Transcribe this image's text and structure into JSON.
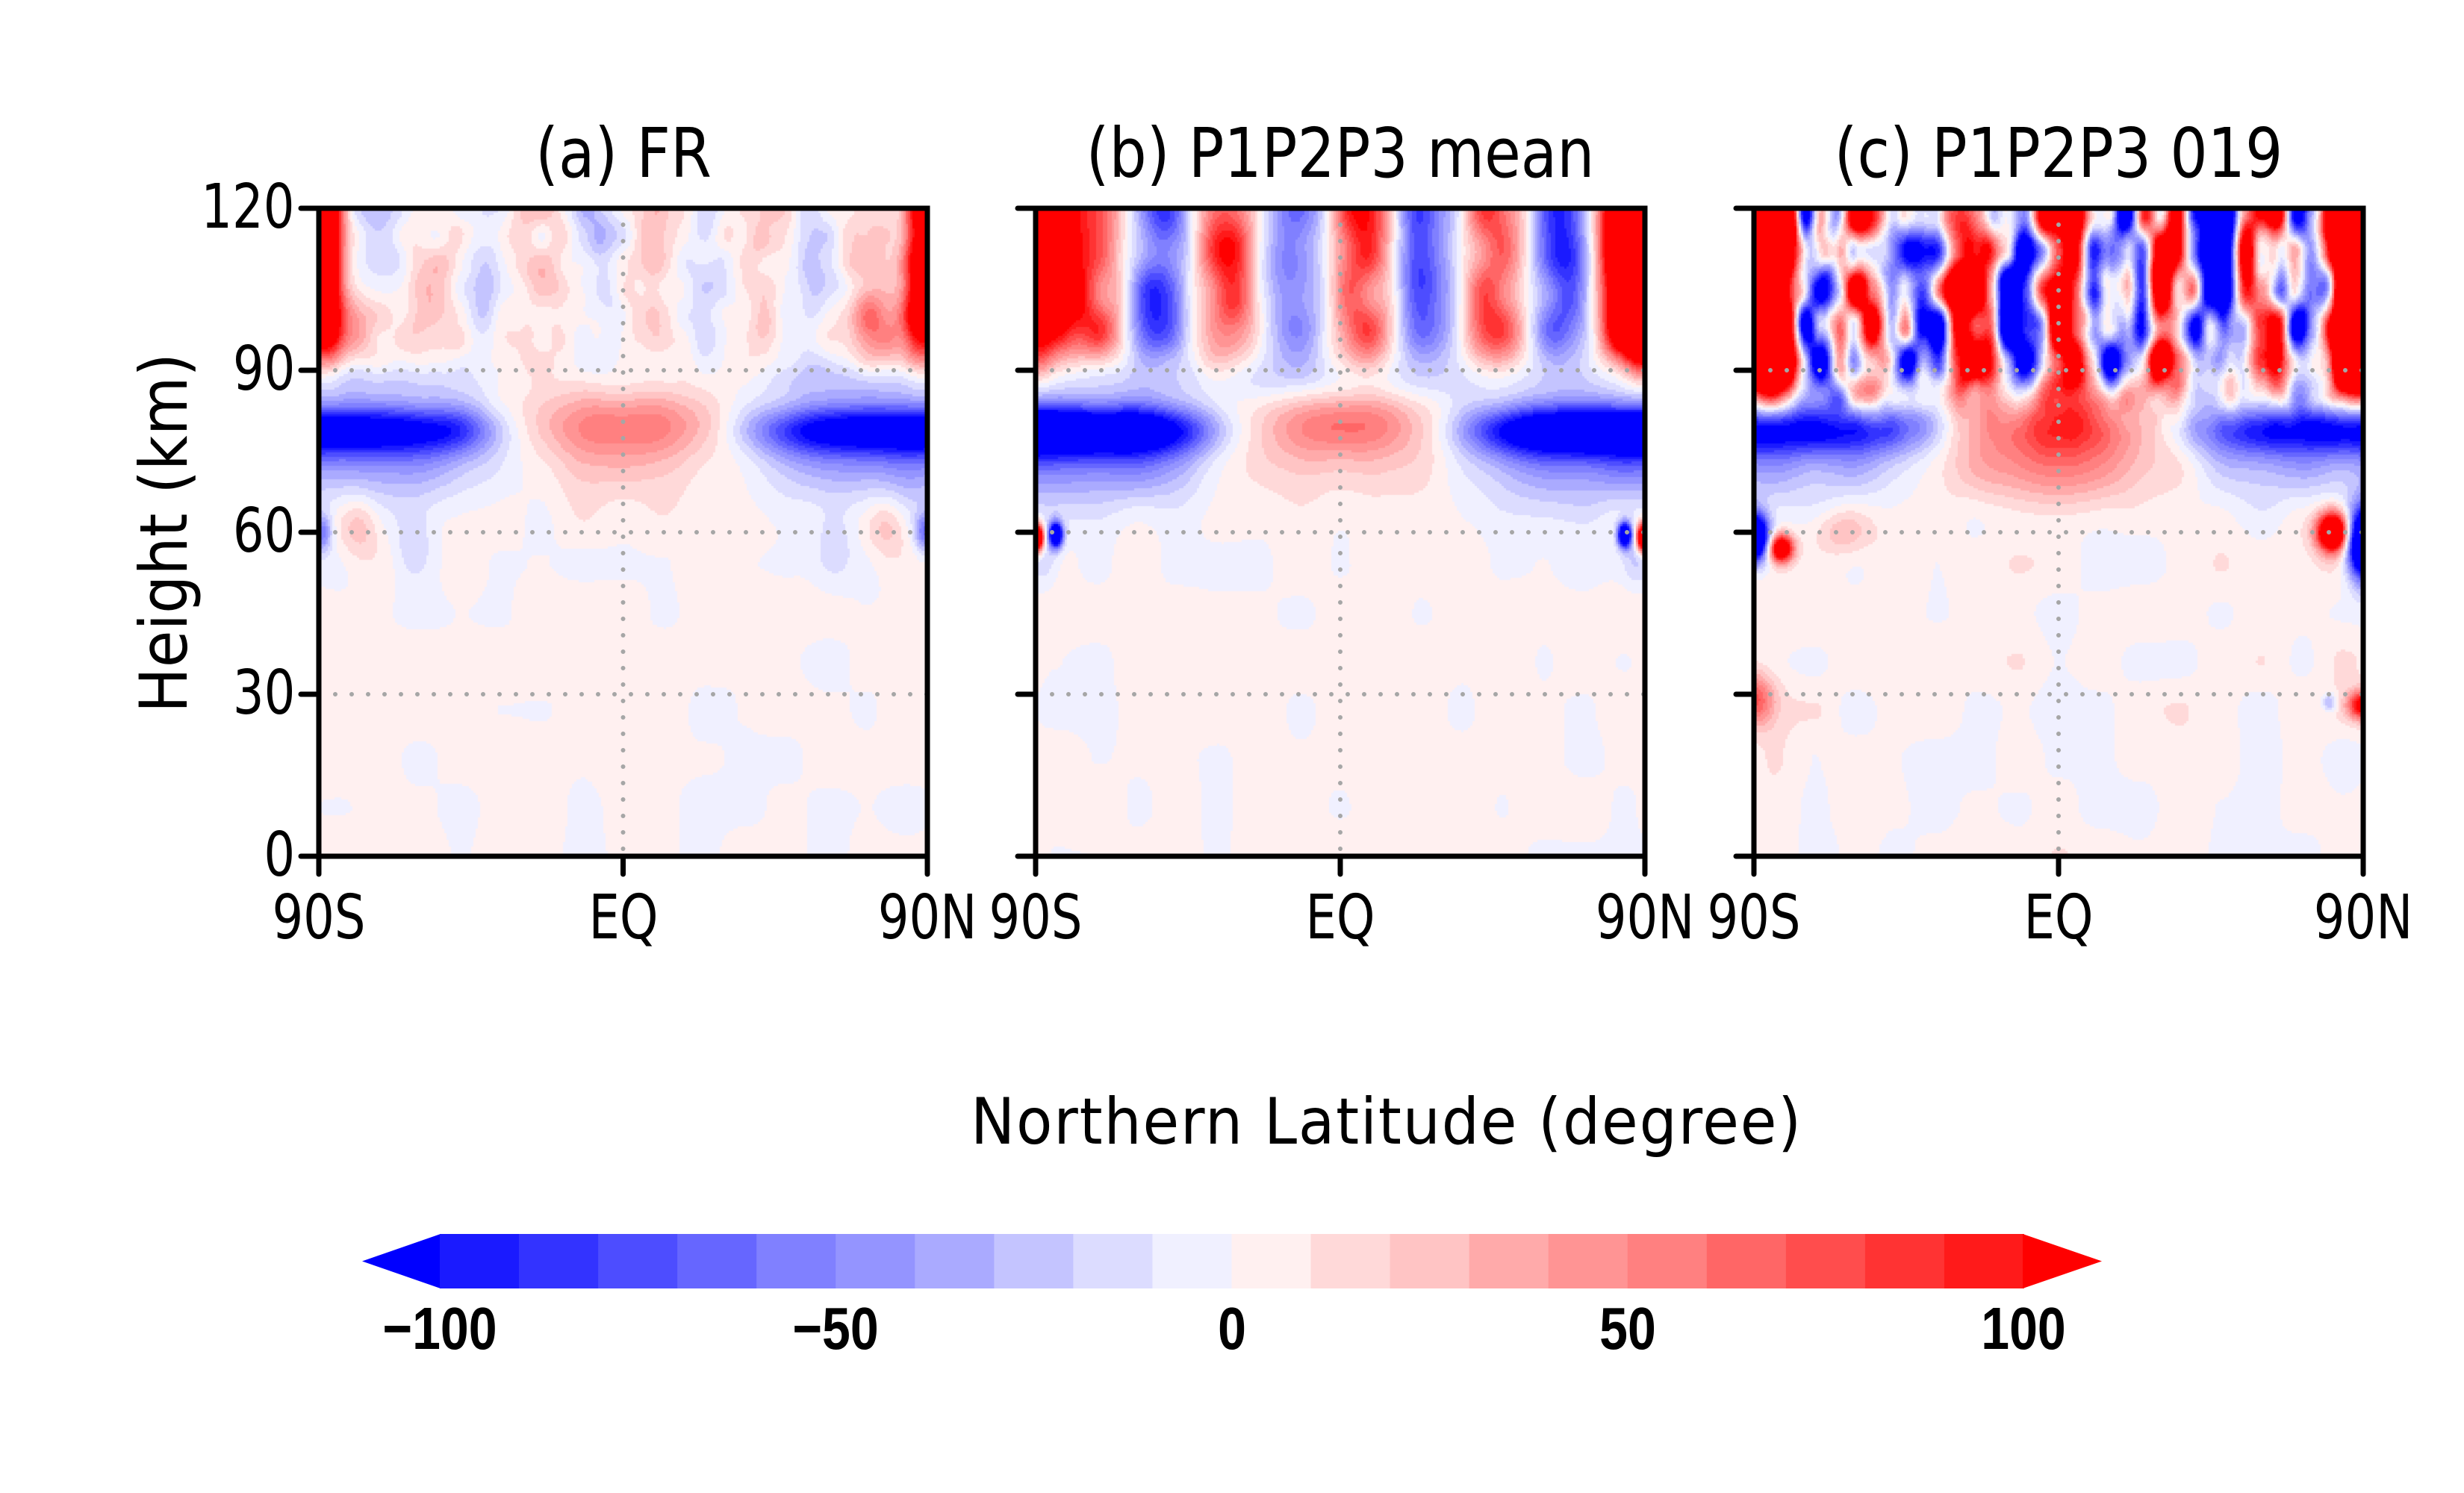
{
  "chart_data": {
    "type": "heatmap",
    "subtype": "filled-contour latitude-height cross sections",
    "xlabel": "Northern Latitude (degree)",
    "ylabel": "Height (km)",
    "xlim": [
      -90,
      90
    ],
    "ylim": [
      0,
      120
    ],
    "x_ticks": [
      {
        "value": -90,
        "label": "90S"
      },
      {
        "value": 0,
        "label": "EQ"
      },
      {
        "value": 90,
        "label": "90N"
      }
    ],
    "y_ticks": [
      {
        "value": 0,
        "label": "0"
      },
      {
        "value": 30,
        "label": "30"
      },
      {
        "value": 60,
        "label": "60"
      },
      {
        "value": 90,
        "label": "90"
      },
      {
        "value": 120,
        "label": "120"
      }
    ],
    "grid": {
      "on": true,
      "style": "dotted",
      "color": "#a6a6a6",
      "x_values": [
        0
      ],
      "y_values": [
        30,
        60,
        90
      ]
    },
    "panels": [
      {
        "id": "a",
        "title": "(a) FR",
        "description": "Strong positive (>100) at both poles above ~95 km; negative band (~-100) near 80 km at high latitudes; positive lens (~+40) centered on equator near 80 km; weak mixed values below 60 km."
      },
      {
        "id": "b",
        "title": "(b) P1P2P3 mean",
        "description": "Alternating positive/negative vertical tongues above 90 km with saturated red at both poles; strong negative band near 80 km at high latitudes; positive lens (~+40) at equator near 80 km; small dipoles at poles near 60 km; near-zero below."
      },
      {
        "id": "c",
        "title": "(c) P1P2P3 019",
        "description": "Noisy saturated alternating structures above 85 km; negative band at 70-80 km high latitudes; positive blob (~+40) near equator 65-80 km; strong dipoles at poles near 55-62 km; positive near 30 km at both poles."
      }
    ],
    "colorbar": {
      "orientation": "horizontal",
      "placement": "bottom",
      "levels": [
        -100,
        -90,
        -80,
        -70,
        -60,
        -50,
        -40,
        -30,
        -20,
        -10,
        0,
        10,
        20,
        30,
        40,
        50,
        60,
        70,
        80,
        90,
        100
      ],
      "extend": "both",
      "tick_labels": [
        {
          "value": -100,
          "label": "−100"
        },
        {
          "value": -50,
          "label": "−50"
        },
        {
          "value": 0,
          "label": "0"
        },
        {
          "value": 50,
          "label": "50"
        },
        {
          "value": 100,
          "label": "100"
        }
      ],
      "colors": [
        "#0000ff",
        "#1a1aff",
        "#3333ff",
        "#4d4dff",
        "#6666ff",
        "#8080ff",
        "#9494ff",
        "#aaaaff",
        "#c4c4ff",
        "#dcdcff",
        "#f0f0ff",
        "#fff0f0",
        "#ffd9d9",
        "#ffc4c4",
        "#ffaaaa",
        "#ff9494",
        "#ff8080",
        "#ff6666",
        "#ff4d4d",
        "#ff3333",
        "#ff1a1a",
        "#ff0000"
      ]
    }
  }
}
